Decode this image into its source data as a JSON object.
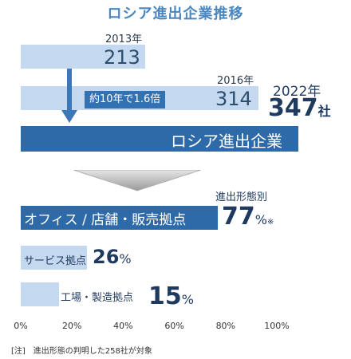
{
  "title": "ロシア進出企業推移",
  "top_section": {
    "years": [
      {
        "year": "2013年",
        "value": 213
      },
      {
        "year": "2016年",
        "value": 314
      },
      {
        "year": "2022年",
        "value": 347
      }
    ],
    "unit": "社",
    "growth_note": "約10年で1.6倍",
    "total_bar_label": "ロシア進出企業"
  },
  "breakdown_heading": "進出形態別",
  "footnote": "[注]　進出形態の判明した258社が対象",
  "chart_data": {
    "type": "bar",
    "orientation": "horizontal",
    "title": "進出形態別",
    "categories": [
      "オフィス / 店舗・販売拠点",
      "サービス拠点",
      "工場・製造拠点"
    ],
    "values": [
      77,
      26,
      15
    ],
    "value_labels": [
      "77",
      "26",
      "15"
    ],
    "value_unit": "%",
    "first_value_suffix": "※",
    "xlim": [
      0,
      100
    ],
    "x_ticks": [
      "0%",
      "20%",
      "40%",
      "60%",
      "80%",
      "100%"
    ],
    "colors": {
      "highlight": "#2f6aa8",
      "normal": "#c4d9ef"
    }
  },
  "colors": {
    "title": "#4a87c0",
    "light_bar": "#c4d9ef",
    "dark_bar": "#2f6aa8",
    "arrow": "#3a78b8",
    "text_dark": "#1f3a5f"
  }
}
